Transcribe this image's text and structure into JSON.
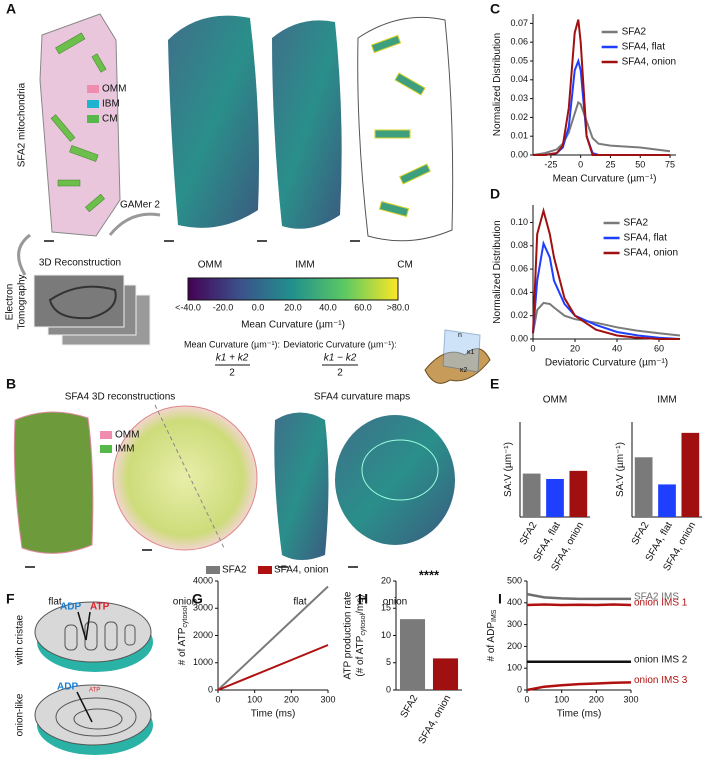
{
  "panel_letters": [
    "A",
    "B",
    "C",
    "D",
    "E",
    "F",
    "G",
    "H",
    "I"
  ],
  "panels": {
    "A": {
      "side_label": "SFA2 mitochondria",
      "legend": [
        "OMM",
        "IBM",
        "CM"
      ],
      "step1": "3D Reconstruction",
      "step2": "GAMer 2",
      "maps": [
        "OMM",
        "IMM",
        "CM"
      ],
      "tomography": [
        "Electron",
        "Tomography"
      ],
      "colorbar": {
        "ticks": [
          "<-40.0",
          "-20.0",
          "0.0",
          "20.0",
          "40.0",
          "60.0",
          ">80.0"
        ],
        "label": "Mean Curvature (µm⁻¹)"
      },
      "mean_label": "Mean Curvature (µm⁻¹):",
      "mean_formula_top": "k1 + k2",
      "mean_formula_bottom": "2",
      "dev_label": "Deviatoric Curvature (µm⁻¹):",
      "dev_formula_top": "k1 − k2",
      "dev_formula_bottom": "2",
      "inset": [
        "n",
        "κ1",
        "κ2"
      ]
    },
    "B": {
      "title_left": "SFA4 3D reconstructions",
      "title_right": "SFA4 curvature maps",
      "legend": [
        "OMM",
        "IMM"
      ],
      "captions": [
        "flat",
        "onion",
        "flat",
        "onion"
      ]
    },
    "F": {
      "rows": [
        "with cristae",
        "onion-like"
      ],
      "top": [
        "ADP",
        "ATP"
      ],
      "bottom": [
        "ADP",
        "ATP"
      ]
    }
  },
  "chart_data": [
    {
      "type": "line",
      "x": [
        -40,
        -30,
        -20,
        -15,
        -10,
        -5,
        -2,
        0,
        5,
        10,
        15,
        25,
        50,
        75
      ],
      "x_label": "Mean Curvature (µm⁻¹)",
      "y_label": "Normalized Distribution",
      "xlim": [
        -40,
        80
      ],
      "xticks": [
        -25,
        0,
        25,
        50,
        75
      ],
      "ylim": [
        0,
        0.075
      ],
      "yticks": [
        {
          "value": 0,
          "label": "0.00"
        },
        {
          "value": 0.01,
          "label": "0.01"
        },
        {
          "value": 0.02,
          "label": "0.02"
        },
        {
          "value": 0.03,
          "label": "0.03"
        },
        {
          "value": 0.04,
          "label": "0.04"
        },
        {
          "value": 0.05,
          "label": "0.05"
        },
        {
          "value": 0.06,
          "label": "0.06"
        },
        {
          "value": 0.07,
          "label": "0.07"
        }
      ],
      "legend": "upper right",
      "series": [
        {
          "name": "SFA2",
          "color": "#7a7a7a",
          "values": [
            0,
            0.001,
            0.003,
            0.006,
            0.012,
            0.022,
            0.028,
            0.027,
            0.018,
            0.009,
            0.006,
            0.005,
            0.004,
            0.002
          ]
        },
        {
          "name": "SFA4, flat",
          "color": "#1f3fff",
          "values": [
            0,
            0,
            0.001,
            0.004,
            0.015,
            0.045,
            0.05,
            0.045,
            0.01,
            0.001,
            0,
            0,
            0,
            0
          ]
        },
        {
          "name": "SFA4, onion",
          "color": "#a01010",
          "values": [
            0,
            0,
            0.001,
            0.005,
            0.025,
            0.065,
            0.072,
            0.06,
            0.01,
            0,
            0,
            0,
            0,
            0
          ]
        }
      ]
    },
    {
      "type": "line",
      "x": [
        0,
        2,
        5,
        8,
        10,
        15,
        20,
        30,
        40,
        50,
        60,
        70
      ],
      "x_label": "Deviatoric Curvature (µm⁻¹)",
      "y_label": "Normalized Distribution",
      "xlim": [
        0,
        70
      ],
      "xticks": [
        0,
        20,
        40,
        60
      ],
      "ylim": [
        0,
        0.115
      ],
      "yticks": [
        {
          "value": 0,
          "label": "0.00"
        },
        {
          "value": 0.02,
          "label": "0.02"
        },
        {
          "value": 0.04,
          "label": "0.04"
        },
        {
          "value": 0.06,
          "label": "0.06"
        },
        {
          "value": 0.08,
          "label": "0.08"
        },
        {
          "value": 0.1,
          "label": "0.10"
        }
      ],
      "legend": "upper right",
      "series": [
        {
          "name": "SFA2",
          "color": "#7a7a7a",
          "values": [
            0.005,
            0.025,
            0.031,
            0.03,
            0.027,
            0.02,
            0.017,
            0.014,
            0.01,
            0.007,
            0.005,
            0.003
          ]
        },
        {
          "name": "SFA4, flat",
          "color": "#1f3fff",
          "values": [
            0.005,
            0.05,
            0.082,
            0.07,
            0.05,
            0.03,
            0.02,
            0.012,
            0.006,
            0.003,
            0.001,
            0
          ]
        },
        {
          "name": "SFA4, onion",
          "color": "#a01010",
          "values": [
            0.005,
            0.09,
            0.11,
            0.09,
            0.07,
            0.035,
            0.02,
            0.008,
            0.003,
            0.001,
            0,
            0
          ]
        }
      ]
    },
    {
      "type": "bar",
      "title": "OMM",
      "y_label": "SA:V (µm⁻¹)",
      "categories": [
        "SFA2",
        "SFA4, flat",
        "SFA4, onion"
      ],
      "values": [
        16,
        14,
        17
      ],
      "colors": [
        "#7a7a7a",
        "#1f3fff",
        "#a01010"
      ],
      "ylim": [
        0,
        35
      ]
    },
    {
      "type": "bar",
      "title": "IMM",
      "y_label": "SA:V (µm⁻¹)",
      "categories": [
        "SFA2",
        "SFA4, flat",
        "SFA4, onion"
      ],
      "values": [
        22,
        12,
        31
      ],
      "colors": [
        "#7a7a7a",
        "#1f3fff",
        "#a01010"
      ],
      "ylim": [
        0,
        35
      ]
    },
    {
      "type": "line",
      "x": [
        0,
        300
      ],
      "x_label": "Time (ms)",
      "y_label": "# of ATP",
      "y_label_sub": "cytosol",
      "xlim": [
        0,
        300
      ],
      "xticks": [
        0,
        100,
        200,
        300
      ],
      "ylim": [
        0,
        4000
      ],
      "yticks": [
        0,
        1000,
        2000,
        3000,
        4000
      ],
      "legend": "top",
      "series": [
        {
          "name": "SFA2",
          "color": "#7a7a7a",
          "values": [
            0,
            3800
          ]
        },
        {
          "name": "SFA4, onion",
          "color": "#b01010",
          "values": [
            0,
            1650
          ]
        }
      ]
    },
    {
      "type": "bar",
      "y_label_top": "ATP production rate",
      "y_label": "(# of ATP",
      "y_label_sub": "cytosol",
      "y_label_end": "/ms)",
      "annotation": "****",
      "categories": [
        "SFA2",
        "SFA4, onion"
      ],
      "values": [
        13,
        5.8
      ],
      "colors": [
        "#7a7a7a",
        "#a01010"
      ],
      "ylim": [
        0,
        20
      ],
      "yticks": [
        0,
        5,
        10,
        15,
        20
      ]
    },
    {
      "type": "line",
      "x": [
        0,
        50,
        100,
        150,
        200,
        250,
        300
      ],
      "x_label": "Time (ms)",
      "y_label": "# of ADP",
      "y_label_sub": "IMS",
      "xlim": [
        0,
        300
      ],
      "xticks": [
        0,
        100,
        200,
        300
      ],
      "ylim": [
        0,
        500
      ],
      "yticks": [
        0,
        100,
        200,
        300,
        400,
        500
      ],
      "legend": "end",
      "series": [
        {
          "name": "SFA2 IMS",
          "color": "#6e6e6e",
          "values": [
            440,
            425,
            420,
            418,
            418,
            418,
            418
          ]
        },
        {
          "name": "onion IMS 1",
          "color": "#b01010",
          "values": [
            390,
            392,
            390,
            391,
            390,
            392,
            390
          ]
        },
        {
          "name": "onion IMS 2",
          "color": "#111111",
          "values": [
            130,
            130,
            130,
            130,
            130,
            130,
            130
          ]
        },
        {
          "name": "onion IMS 3",
          "color": "#b01010",
          "values": [
            0,
            15,
            22,
            27,
            30,
            33,
            35
          ]
        }
      ]
    }
  ]
}
